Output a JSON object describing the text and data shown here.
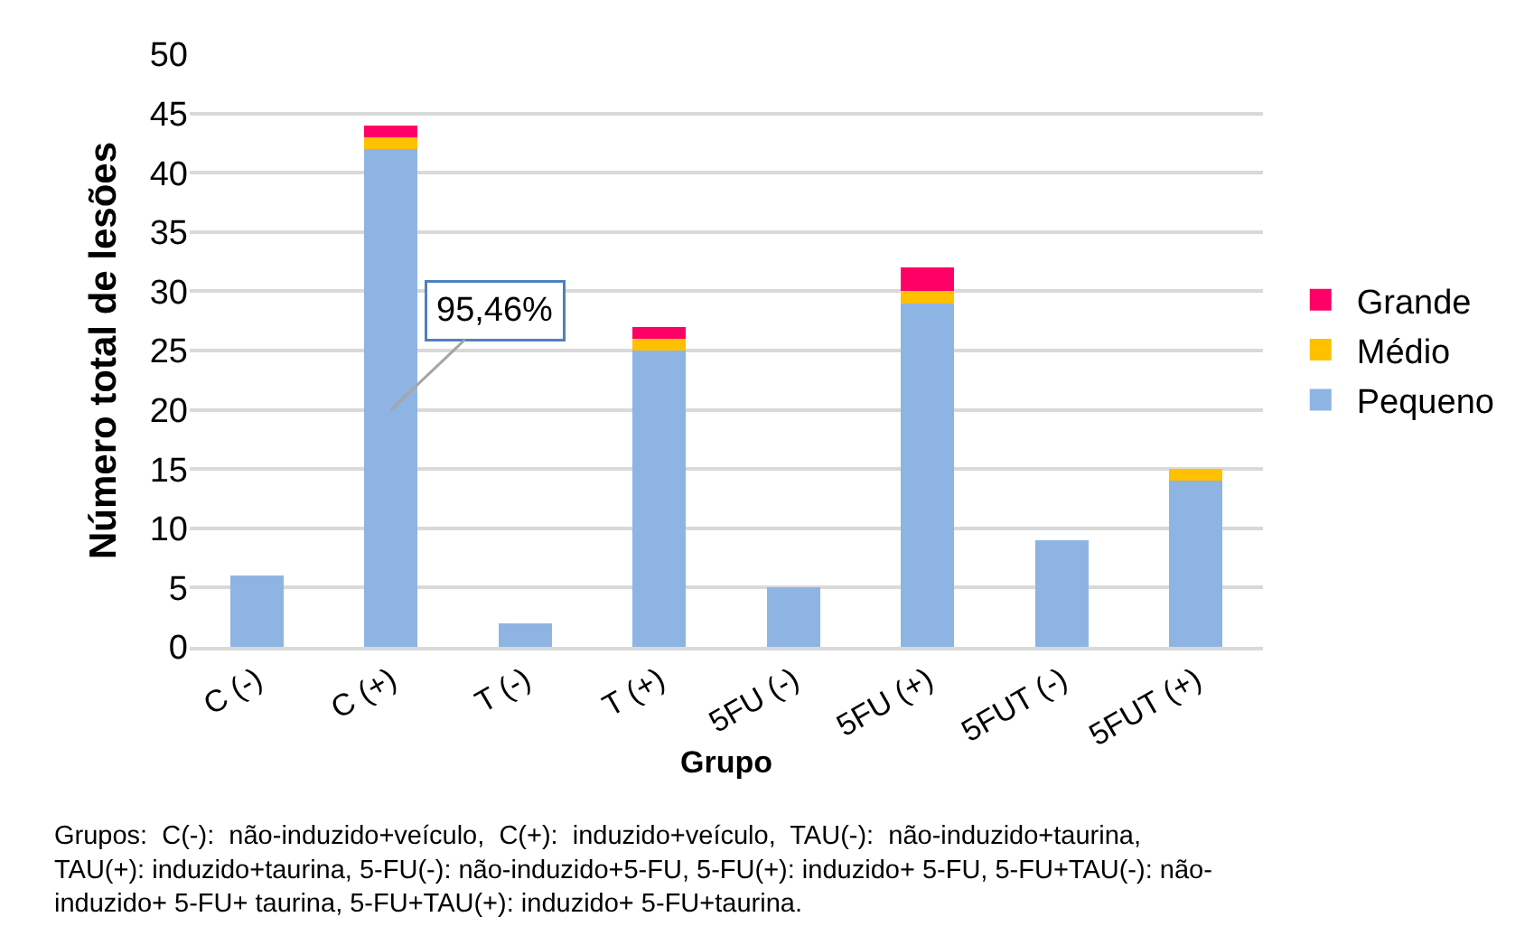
{
  "chart_data": {
    "type": "bar",
    "stacked": true,
    "xlabel": "Grupo",
    "ylabel": "Número total de lesões",
    "categories": [
      "C (-)",
      "C (+)",
      "T (-)",
      "T (+)",
      "5FU (-)",
      "5FU (+)",
      "5FUT (-)",
      "5FUT (+)"
    ],
    "series": [
      {
        "name": "Pequeno",
        "color": "#8eb4e3",
        "values": [
          6,
          42,
          2,
          25,
          5,
          29,
          9,
          14
        ]
      },
      {
        "name": "Médio",
        "color": "#ffc000",
        "values": [
          0,
          1,
          0,
          1,
          0,
          1,
          0,
          1
        ]
      },
      {
        "name": "Grande",
        "color": "#ff0066",
        "values": [
          0,
          1,
          0,
          1,
          0,
          2,
          0,
          0
        ]
      }
    ],
    "ylim": [
      0,
      50
    ],
    "yticks": [
      0,
      5,
      10,
      15,
      20,
      25,
      30,
      35,
      40,
      45,
      50
    ],
    "grid": "y",
    "legend": "right",
    "annotations": [
      "95,46%",
      "Grupos:  C(-):  não-induzido+veículo,  C(+):  induzido+veículo,  TAU(-):  não-induzido+taurina, TAU(+): induzido+taurina, 5-FU(-): não-induzido+5-FU, 5-FU(+): induzido+ 5-FU, 5-FU+TAU(-): não-induzido+ 5-FU+ taurina, 5-FU+TAU(+): induzido+ 5-FU+taurina."
    ]
  }
}
